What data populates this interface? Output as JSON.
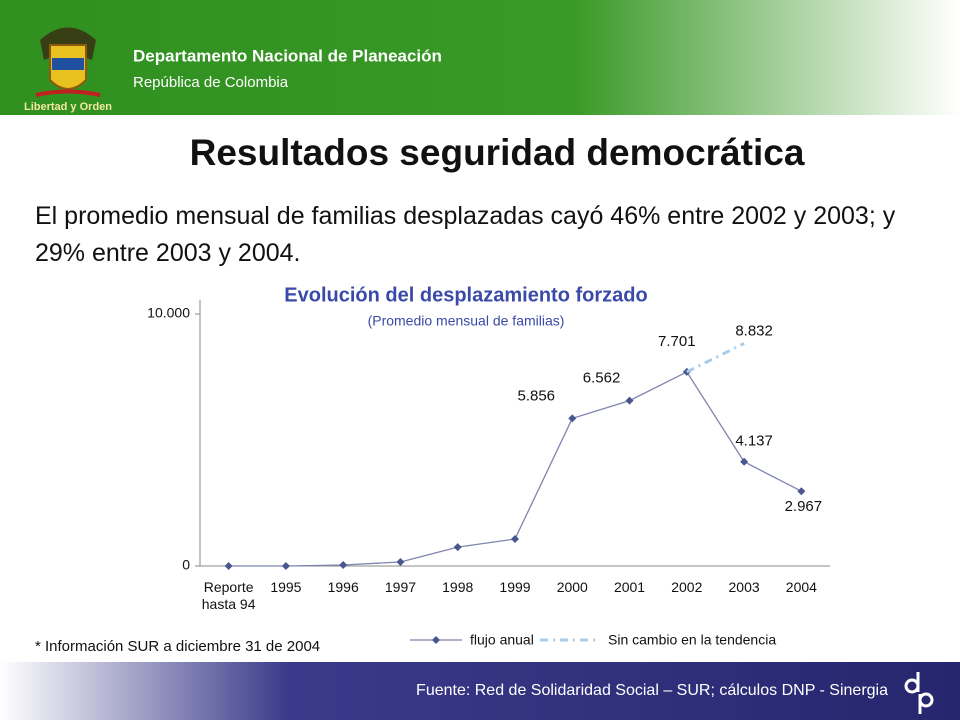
{
  "header": {
    "organization": "Departamento Nacional de Planeación",
    "country": "República de Colombia",
    "motto": "Libertad y Orden"
  },
  "slide_title": "Resultados seguridad democrática",
  "body_text": "El promedio mensual de familias desplazadas cayó 46% entre 2002 y 2003; y 29% entre 2003 y 2004.",
  "chart_data": {
    "type": "line",
    "title": "Evolución del desplazamiento forzado",
    "subtitle": "(Promedio mensual de familias)",
    "categories": [
      "Reporte hasta 94",
      "1995",
      "1996",
      "1997",
      "1998",
      "1999",
      "2000",
      "2001",
      "2002",
      "2003",
      "2004"
    ],
    "series": [
      {
        "name": "flujo anual",
        "color": "#7f84b0",
        "marker_color": "#4a5690",
        "dashed": false,
        "values": [
          0,
          0,
          40,
          160,
          750,
          1070,
          5856,
          6562,
          7701,
          4137,
          2967
        ],
        "value_labels": [
          null,
          null,
          null,
          null,
          null,
          null,
          "5.856",
          "6.562",
          "7.701",
          "4.137",
          "2.967"
        ]
      },
      {
        "name": "Sin cambio en la tendencia",
        "color": "#a8cdea",
        "dashed": true,
        "values": [
          null,
          null,
          null,
          null,
          null,
          null,
          null,
          null,
          7701,
          8832,
          null
        ],
        "value_labels": [
          null,
          null,
          null,
          null,
          null,
          null,
          null,
          null,
          null,
          "8.832",
          null
        ]
      }
    ],
    "ylim": [
      0,
      10000
    ],
    "yticks": [
      0,
      {
        "value": 10000,
        "label": "10.000"
      }
    ],
    "grid": false
  },
  "footnote": "* Información SUR a diciembre 31 de 2004",
  "footer": "Fuente: Red de Solidaridad Social – SUR; cálculos DNP - Sinergia"
}
